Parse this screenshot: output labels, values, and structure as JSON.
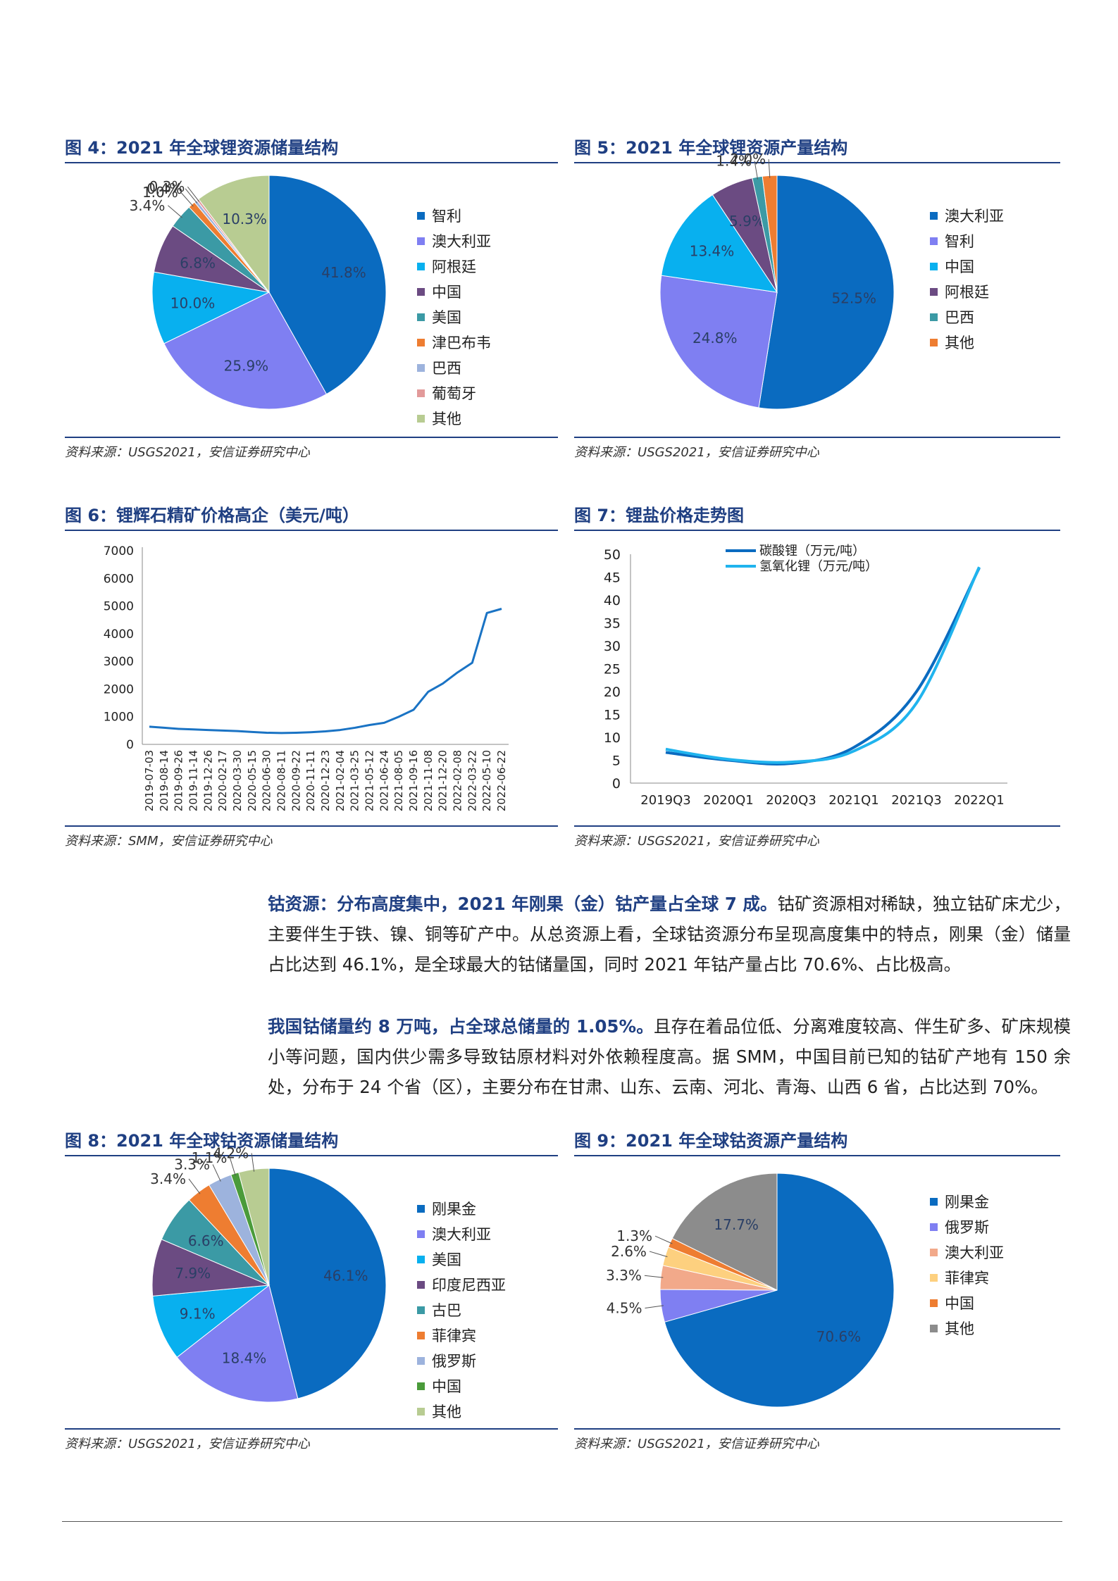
{
  "figures": {
    "fig4": {
      "title": "图 4：2021 年全球锂资源储量结构",
      "source": "资料来源：USGS2021，安信证券研究中心",
      "chart_data": {
        "type": "pie",
        "categories": [
          "智利",
          "澳大利亚",
          "阿根廷",
          "中国",
          "美国",
          "津巴布韦",
          "巴西",
          "葡萄牙",
          "其他"
        ],
        "values": [
          41.8,
          25.9,
          10.0,
          6.8,
          3.4,
          1.0,
          0.4,
          0.3,
          10.3
        ],
        "labels": [
          "41.8%",
          "25.9%",
          "10.0%",
          "6.8%",
          "3.4%",
          "1.0%",
          "0.4%",
          "0.3%",
          "10.3%"
        ],
        "colors": [
          "#0a6bc0",
          "#7f7ff2",
          "#08b0ef",
          "#6b4b82",
          "#3b9aa5",
          "#ee7d31",
          "#9db3dd",
          "#e29a9a",
          "#b8cc92"
        ],
        "legend_position": "right"
      }
    },
    "fig5": {
      "title": "图 5：2021 年全球锂资源产量结构",
      "source": "资料来源：USGS2021，安信证券研究中心",
      "chart_data": {
        "type": "pie",
        "categories": [
          "澳大利亚",
          "智利",
          "中国",
          "阿根廷",
          "巴西",
          "其他"
        ],
        "values": [
          52.5,
          24.8,
          13.4,
          5.9,
          1.4,
          2.0
        ],
        "labels": [
          "52.5%",
          "24.8%",
          "13.4%",
          "5.9%",
          "1.4%",
          "2.0%"
        ],
        "colors": [
          "#0a6bc0",
          "#7f7ff2",
          "#08b0ef",
          "#6b4b82",
          "#3b9aa5",
          "#ee7d31"
        ],
        "legend_position": "right"
      }
    },
    "fig6": {
      "title": "图 6：锂辉石精矿价格高企（美元/吨）",
      "source": "资料来源：SMM，安信证券研究中心",
      "chart_data": {
        "type": "line",
        "x": [
          "2019-07-03",
          "2019-08-14",
          "2019-09-26",
          "2019-11-14",
          "2019-12-26",
          "2020-02-17",
          "2020-03-30",
          "2020-05-15",
          "2020-06-30",
          "2020-08-11",
          "2020-09-22",
          "2020-11-11",
          "2020-12-23",
          "2021-02-04",
          "2021-03-25",
          "2021-05-12",
          "2021-06-24",
          "2021-08-05",
          "2021-09-16",
          "2021-11-08",
          "2021-12-20",
          "2022-02-08",
          "2022-03-22",
          "2022-05-10",
          "2022-06-22"
        ],
        "series": [
          {
            "values": [
              640,
              600,
              560,
              540,
              520,
              500,
              480,
              450,
              420,
              410,
              420,
              440,
              470,
              520,
              600,
              700,
              780,
              1000,
              1250,
              1900,
              2200,
              2600,
              2950,
              4750,
              4900
            ]
          }
        ],
        "ylim": [
          0,
          7000
        ],
        "yticks": [
          "7000",
          "6000",
          "5000",
          "4000",
          "3000",
          "2000",
          "1000",
          "0"
        ],
        "color": "#1a73c4"
      }
    },
    "fig7": {
      "title": "图 7：锂盐价格走势图",
      "source": "资料来源：USGS2021，安信证券研究中心",
      "chart_data": {
        "type": "line",
        "x": [
          "2019Q3",
          "2020Q1",
          "2020Q3",
          "2021Q1",
          "2021Q3",
          "2022Q1"
        ],
        "series": [
          {
            "name": "碳酸锂（万元/吨）",
            "values": [
              6.7,
              5.0,
              4.3,
              7.8,
              20.0,
              47.0
            ],
            "color": "#0a6bc0"
          },
          {
            "name": "氢氧化锂（万元/吨）",
            "values": [
              7.4,
              5.2,
              4.6,
              7.0,
              17.5,
              47.2
            ],
            "color": "#20b4ee"
          }
        ],
        "ylim": [
          0,
          50
        ],
        "yticks": [
          "50",
          "45",
          "40",
          "35",
          "30",
          "25",
          "20",
          "15",
          "10",
          "5",
          "0"
        ],
        "legend_position": "top-left"
      }
    },
    "fig8": {
      "title": "图 8：2021 年全球钴资源储量结构",
      "source": "资料来源：USGS2021，安信证券研究中心",
      "chart_data": {
        "type": "pie",
        "categories": [
          "刚果金",
          "澳大利亚",
          "美国",
          "印度尼西亚",
          "古巴",
          "菲律宾",
          "俄罗斯",
          "中国",
          "其他"
        ],
        "values": [
          46.1,
          18.4,
          9.1,
          7.9,
          6.6,
          3.4,
          3.3,
          1.1,
          4.2
        ],
        "labels": [
          "46.1%",
          "18.4%",
          "9.1%",
          "7.9%",
          "6.6%",
          "3.4%",
          "3.3%",
          "1.1%",
          "4.2%"
        ],
        "colors": [
          "#0a6bc0",
          "#7f7ff2",
          "#08b0ef",
          "#6b4b82",
          "#3b9aa5",
          "#ee7d31",
          "#9db3dd",
          "#4a9b3a",
          "#b8cc92"
        ],
        "legend_position": "right"
      }
    },
    "fig9": {
      "title": "图 9：2021 年全球钴资源产量结构",
      "source": "资料来源：USGS2021，安信证券研究中心",
      "chart_data": {
        "type": "pie",
        "categories": [
          "刚果金",
          "俄罗斯",
          "澳大利亚",
          "菲律宾",
          "中国",
          "其他"
        ],
        "values": [
          70.6,
          4.5,
          3.3,
          2.6,
          1.3,
          17.7
        ],
        "labels": [
          "70.6%",
          "4.5%",
          "3.3%",
          "2.6%",
          "1.3%",
          "17.7%"
        ],
        "colors": [
          "#0a6bc0",
          "#7f7ff2",
          "#f2a98a",
          "#fdd07f",
          "#ee7d31",
          "#8c8c8c"
        ],
        "legend_position": "right"
      }
    }
  },
  "text": {
    "p1_bold": "钴资源：分布高度集中，2021 年刚果（金）钴产量占全球 7 成。",
    "p1_rest": "钴矿资源相对稀缺，独立钴矿床尤少，主要伴生于铁、镍、铜等矿产中。从总资源上看，全球钴资源分布呈现高度集中的特点，刚果（金）储量占比达到 46.1%，是全球最大的钴储量国，同时 2021 年钴产量占比 70.6%、占比极高。",
    "p2_bold": "我国钴储量约 8 万吨，占全球总储量的 1.05%。",
    "p2_rest": "且存在着品位低、分离难度较高、伴生矿多、矿床规模小等问题，国内供少需多导致钴原材料对外依赖程度高。据 SMM，中国目前已知的钴矿产地有 150 余处，分布于 24 个省（区），主要分布在甘肃、山东、云南、河北、青海、山西 6 省，占比达到 70%。"
  }
}
